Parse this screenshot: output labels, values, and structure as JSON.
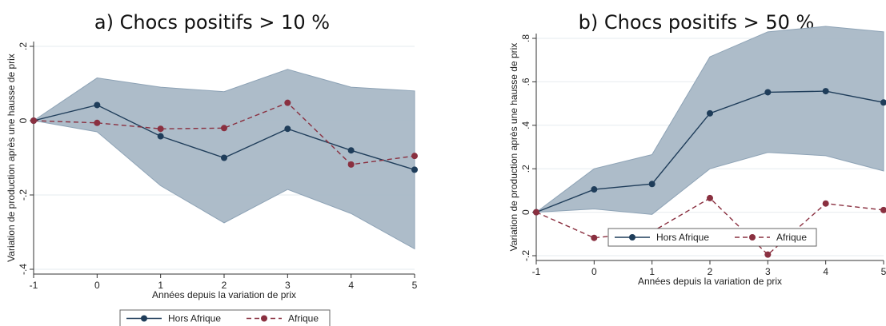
{
  "chart_data": [
    {
      "type": "line",
      "title": "a) Chocs positifs > 10 %",
      "xlabel": "Années depuis la variation de prix",
      "ylabel": "Variation de production après une hausse de prix",
      "x": [
        -1,
        0,
        1,
        2,
        3,
        4,
        5
      ],
      "xlim": [
        -1,
        5
      ],
      "ylim": [
        -0.4,
        0.2
      ],
      "yticks": [
        -0.4,
        -0.2,
        0,
        0.2
      ],
      "ytick_labels": [
        "-.4",
        "-.2",
        "0",
        ".2"
      ],
      "xtick_labels": [
        "-1",
        "0",
        "1",
        "2",
        "3",
        "4",
        "5"
      ],
      "grid": true,
      "legend_position": "bottom",
      "series": [
        {
          "name": "Hors Afrique",
          "style": "solid",
          "color": "#1f3d5a",
          "values": [
            0,
            0.042,
            -0.042,
            -0.1,
            -0.022,
            -0.08,
            -0.132
          ]
        },
        {
          "name": "Afrique",
          "style": "dashed",
          "color": "#8a3040",
          "values": [
            0,
            -0.006,
            -0.022,
            -0.02,
            0.048,
            -0.118,
            -0.095
          ]
        }
      ],
      "band": {
        "upper": [
          0,
          0.115,
          0.09,
          0.078,
          0.138,
          0.09,
          0.08
        ],
        "lower": [
          0,
          -0.03,
          -0.175,
          -0.275,
          -0.185,
          -0.25,
          -0.345
        ],
        "color": "#a9b8c6"
      }
    },
    {
      "type": "line",
      "title": "b) Chocs positifs > 50 %",
      "xlabel": "Années depuis la variation de prix",
      "ylabel": "Variation de production après une hausse de prix",
      "x": [
        -1,
        0,
        1,
        2,
        3,
        4,
        5
      ],
      "xlim": [
        -1,
        5
      ],
      "ylim": [
        -0.2,
        0.8
      ],
      "yticks": [
        -0.2,
        0,
        0.2,
        0.4,
        0.6,
        0.8
      ],
      "ytick_labels": [
        "-.2",
        "0",
        ".2",
        ".4",
        ".6",
        ".8"
      ],
      "xtick_labels": [
        "-1",
        "0",
        "1",
        "2",
        "3",
        "4",
        "5"
      ],
      "grid": true,
      "legend_position": "bottom",
      "series": [
        {
          "name": "Hors Afrique",
          "style": "solid",
          "color": "#1f3d5a",
          "values": [
            0,
            0.105,
            0.13,
            0.455,
            0.552,
            0.557,
            0.505
          ]
        },
        {
          "name": "Afrique",
          "style": "dashed",
          "color": "#8a3040",
          "values": [
            0,
            -0.118,
            -0.09,
            0.065,
            -0.195,
            0.04,
            0.01
          ]
        }
      ],
      "band": {
        "upper": [
          0,
          0.2,
          0.265,
          0.715,
          0.83,
          0.855,
          0.83
        ],
        "lower": [
          0,
          0.015,
          -0.01,
          0.2,
          0.275,
          0.26,
          0.19
        ],
        "color": "#a9b8c6"
      }
    }
  ]
}
